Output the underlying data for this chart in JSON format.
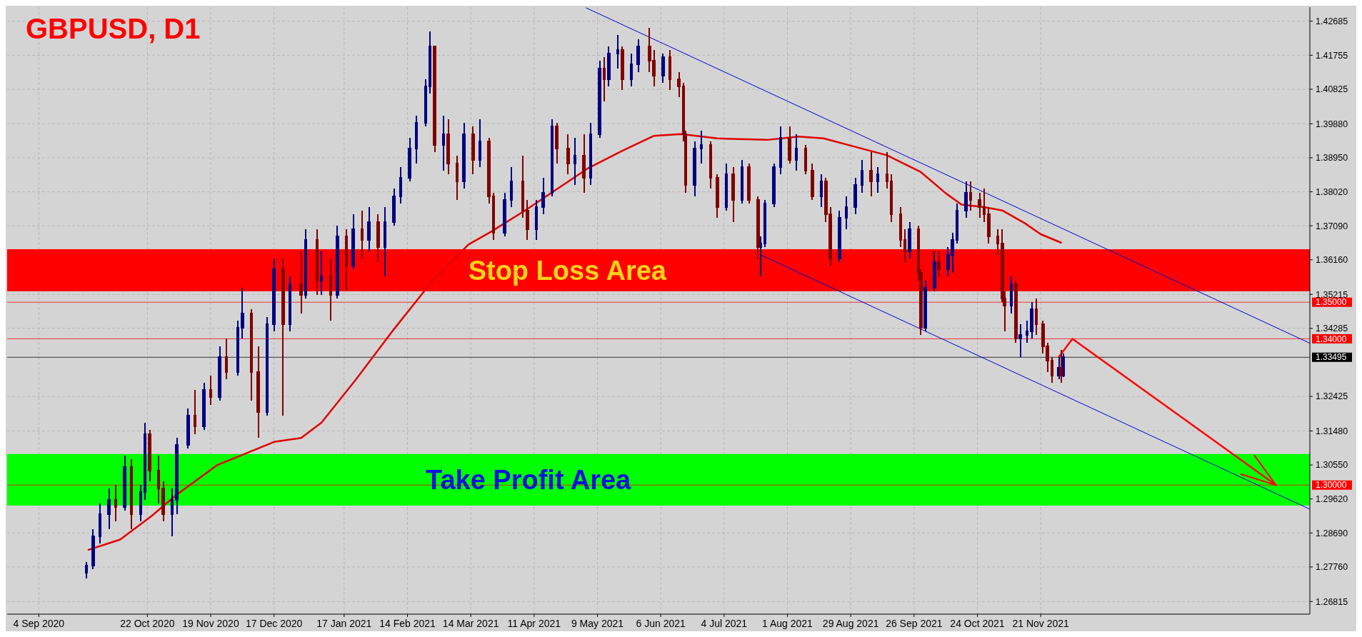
{
  "chart_data": {
    "type": "candlestick",
    "title": "GBPUSD, D1",
    "xlim": [
      "2020-08-21",
      "2022-03-20"
    ],
    "ylim": [
      1.2647,
      1.4307
    ],
    "xticks": [
      {
        "value": "2020-09-04",
        "label": "4 Sep 2020"
      },
      {
        "value": "2020-10-22",
        "label": "22 Oct 2020"
      },
      {
        "value": "2020-11-19",
        "label": "19 Nov 2020"
      },
      {
        "value": "2020-12-17",
        "label": "17 Dec 2020"
      },
      {
        "value": "2021-01-17",
        "label": "17 Jan 2021"
      },
      {
        "value": "2021-02-14",
        "label": "14 Feb 2021"
      },
      {
        "value": "2021-03-14",
        "label": "14 Mar 2021"
      },
      {
        "value": "2021-04-11",
        "label": "11 Apr 2021"
      },
      {
        "value": "2021-05-09",
        "label": "9 May 2021"
      },
      {
        "value": "2021-06-06",
        "label": "6 Jun 2021"
      },
      {
        "value": "2021-07-04",
        "label": "4 Jul 2021"
      },
      {
        "value": "2021-08-01",
        "label": "1 Aug 2021"
      },
      {
        "value": "2021-08-29",
        "label": "29 Aug 2021"
      },
      {
        "value": "2021-09-26",
        "label": "26 Sep 2021"
      },
      {
        "value": "2021-10-24",
        "label": "24 Oct 2021"
      },
      {
        "value": "2021-11-21",
        "label": "21 Nov 2021"
      }
    ],
    "yticks": [
      1.26815,
      {
        "value": 1.2776,
        "label": "1.27760"
      },
      {
        "value": 1.2869,
        "label": "1.28690"
      },
      {
        "value": 1.2962,
        "label": "1.29620"
      },
      {
        "value": 1.3055,
        "label": "1.30550"
      },
      {
        "value": 1.3148,
        "label": "1.31480"
      },
      1.32425,
      1.34285,
      1.35215,
      {
        "value": 1.3616,
        "label": "1.36160"
      },
      {
        "value": 1.3709,
        "label": "1.37090"
      },
      {
        "value": 1.3802,
        "label": "1.38020"
      },
      {
        "value": 1.3895,
        "label": "1.38950"
      },
      {
        "value": 1.3988,
        "label": "1.39880"
      },
      1.40825,
      1.41755,
      1.42685
    ],
    "grid": true,
    "bands": [
      {
        "axis": "y",
        "from": 1.353,
        "to": 1.3645,
        "label": "Stop Loss Area",
        "color": "#ff0000"
      },
      {
        "axis": "y",
        "from": 1.2944,
        "to": 1.3085,
        "label": "Take Profit Area",
        "color": "#00ff00"
      }
    ],
    "ref_lines": [
      {
        "axis": "y",
        "value": 1.35,
        "label": "1.35000",
        "color": "#ff0000"
      },
      {
        "axis": "y",
        "value": 1.34,
        "label": "1.34000",
        "color": "#ff0000"
      },
      {
        "axis": "y",
        "value": 1.3,
        "label": "1.30000",
        "color": "#ff0000"
      },
      {
        "axis": "y",
        "value": 1.33495,
        "label": "1.33495",
        "color": "#000000"
      }
    ],
    "series": [
      {
        "type": "candlestick",
        "color": "#000080",
        "x": [
          "2020-09-25",
          "2020-09-28",
          "2020-10-01",
          "2020-10-05",
          "2020-10-12",
          "2020-10-19",
          "2020-10-21",
          "2020-11-02",
          "2020-11-04",
          "2020-11-09",
          "2020-11-16",
          "2020-11-23",
          "2020-12-01",
          "2020-12-03",
          "2020-12-14",
          "2020-12-17",
          "2020-12-24",
          "2020-12-31",
          "2021-01-07",
          "2021-01-14",
          "2021-01-21",
          "2021-01-28",
          "2021-02-04",
          "2021-02-08",
          "2021-02-11",
          "2021-02-15",
          "2021-02-18",
          "2021-02-22",
          "2021-02-24",
          "2021-03-02",
          "2021-03-11",
          "2021-03-18",
          "2021-03-29",
          "2021-04-01",
          "2021-04-12",
          "2021-04-15",
          "2021-04-19",
          "2021-04-29",
          "2021-05-06",
          "2021-05-10",
          "2021-05-14",
          "2021-05-18",
          "2021-05-24",
          "2021-05-27",
          "2021-06-07",
          "2021-06-21",
          "2021-06-24",
          "2021-07-05",
          "2021-07-12",
          "2021-07-20",
          "2021-07-22",
          "2021-07-26",
          "2021-07-29",
          "2021-08-05",
          "2021-08-16",
          "2021-08-24",
          "2021-08-27",
          "2021-08-31",
          "2021-09-03",
          "2021-09-10",
          "2021-09-24",
          "2021-10-01",
          "2021-10-05",
          "2021-10-11",
          "2021-10-13",
          "2021-10-15",
          "2021-10-19",
          "2021-11-08",
          "2021-11-12",
          "2021-11-15",
          "2021-11-17",
          "2021-11-29",
          "2021-12-01"
        ],
        "ohlc": [
          [
            1.276,
            1.279,
            1.2745,
            1.278
          ],
          [
            1.278,
            1.288,
            1.277,
            1.286
          ],
          [
            1.286,
            1.295,
            1.284,
            1.292
          ],
          [
            1.292,
            1.299,
            1.288,
            1.296
          ],
          [
            1.294,
            1.308,
            1.293,
            1.305
          ],
          [
            1.292,
            1.3,
            1.29,
            1.298
          ],
          [
            1.298,
            1.317,
            1.296,
            1.314
          ],
          [
            1.292,
            1.299,
            1.286,
            1.296
          ],
          [
            1.296,
            1.313,
            1.292,
            1.311
          ],
          [
            1.311,
            1.321,
            1.31,
            1.319
          ],
          [
            1.316,
            1.328,
            1.315,
            1.326
          ],
          [
            1.324,
            1.338,
            1.323,
            1.335
          ],
          [
            1.331,
            1.345,
            1.33,
            1.343
          ],
          [
            1.343,
            1.354,
            1.34,
            1.347
          ],
          [
            1.32,
            1.346,
            1.319,
            1.344
          ],
          [
            1.344,
            1.362,
            1.342,
            1.359
          ],
          [
            1.344,
            1.357,
            1.342,
            1.355
          ],
          [
            1.352,
            1.37,
            1.351,
            1.367
          ],
          [
            1.356,
            1.364,
            1.352,
            1.357
          ],
          [
            1.352,
            1.371,
            1.351,
            1.368
          ],
          [
            1.36,
            1.374,
            1.359,
            1.37
          ],
          [
            1.367,
            1.376,
            1.364,
            1.372
          ],
          [
            1.365,
            1.376,
            1.357,
            1.372
          ],
          [
            1.372,
            1.381,
            1.371,
            1.379
          ],
          [
            1.379,
            1.387,
            1.377,
            1.384
          ],
          [
            1.384,
            1.395,
            1.383,
            1.392
          ],
          [
            1.392,
            1.401,
            1.388,
            1.399
          ],
          [
            1.399,
            1.411,
            1.398,
            1.409
          ],
          [
            1.409,
            1.424,
            1.407,
            1.42
          ],
          [
            1.393,
            1.401,
            1.386,
            1.396
          ],
          [
            1.383,
            1.399,
            1.381,
            1.396
          ],
          [
            1.389,
            1.4,
            1.387,
            1.394
          ],
          [
            1.369,
            1.38,
            1.368,
            1.378
          ],
          [
            1.378,
            1.387,
            1.376,
            1.383
          ],
          [
            1.37,
            1.378,
            1.367,
            1.376
          ],
          [
            1.376,
            1.384,
            1.374,
            1.38
          ],
          [
            1.38,
            1.4,
            1.379,
            1.398
          ],
          [
            1.388,
            1.395,
            1.382,
            1.39
          ],
          [
            1.384,
            1.399,
            1.382,
            1.396
          ],
          [
            1.396,
            1.416,
            1.395,
            1.414
          ],
          [
            1.411,
            1.42,
            1.409,
            1.418
          ],
          [
            1.418,
            1.423,
            1.414,
            1.419
          ],
          [
            1.411,
            1.418,
            1.409,
            1.415
          ],
          [
            1.415,
            1.422,
            1.413,
            1.42
          ],
          [
            1.412,
            1.418,
            1.41,
            1.417
          ],
          [
            1.382,
            1.394,
            1.379,
            1.392
          ],
          [
            1.392,
            1.397,
            1.388,
            1.393
          ],
          [
            1.376,
            1.388,
            1.375,
            1.385
          ],
          [
            1.378,
            1.389,
            1.377,
            1.387
          ],
          [
            1.365,
            1.368,
            1.357,
            1.366
          ],
          [
            1.366,
            1.378,
            1.365,
            1.377
          ],
          [
            1.377,
            1.388,
            1.376,
            1.387
          ],
          [
            1.387,
            1.398,
            1.385,
            1.395
          ],
          [
            1.389,
            1.396,
            1.386,
            1.392
          ],
          [
            1.379,
            1.385,
            1.376,
            1.383
          ],
          [
            1.362,
            1.375,
            1.361,
            1.373
          ],
          [
            1.373,
            1.379,
            1.37,
            1.376
          ],
          [
            1.376,
            1.384,
            1.374,
            1.382
          ],
          [
            1.382,
            1.389,
            1.38,
            1.386
          ],
          [
            1.383,
            1.387,
            1.38,
            1.385
          ],
          [
            1.364,
            1.372,
            1.362,
            1.37
          ],
          [
            1.343,
            1.356,
            1.342,
            1.354
          ],
          [
            1.354,
            1.364,
            1.353,
            1.361
          ],
          [
            1.359,
            1.365,
            1.357,
            1.363
          ],
          [
            1.363,
            1.369,
            1.358,
            1.367
          ],
          [
            1.367,
            1.377,
            1.366,
            1.375
          ],
          [
            1.375,
            1.383,
            1.373,
            1.38
          ],
          [
            1.349,
            1.357,
            1.347,
            1.355
          ],
          [
            1.34,
            1.344,
            1.335,
            1.341
          ],
          [
            1.341,
            1.345,
            1.339,
            1.342
          ],
          [
            1.342,
            1.35,
            1.34,
            1.348
          ],
          [
            1.33,
            1.335,
            1.329,
            1.332
          ],
          [
            1.33,
            1.336,
            1.3295,
            1.33495
          ]
        ]
      },
      {
        "type": "candlestick",
        "color": "#800000",
        "x": [
          "2020-10-08",
          "2020-10-15",
          "2020-10-23",
          "2020-10-27",
          "2020-10-29",
          "2020-11-12",
          "2020-11-19",
          "2020-11-26",
          "2020-12-07",
          "2020-12-10",
          "2020-12-21",
          "2020-12-29",
          "2021-01-05",
          "2021-01-11",
          "2021-01-18",
          "2021-01-25",
          "2021-02-01",
          "2021-02-26",
          "2021-03-04",
          "2021-03-08",
          "2021-03-15",
          "2021-03-22",
          "2021-03-24",
          "2021-04-06",
          "2021-04-08",
          "2021-04-21",
          "2021-04-26",
          "2021-05-03",
          "2021-05-12",
          "2021-05-20",
          "2021-06-01",
          "2021-06-03",
          "2021-06-10",
          "2021-06-14",
          "2021-06-16",
          "2021-06-17",
          "2021-06-28",
          "2021-07-01",
          "2021-07-08",
          "2021-07-15",
          "2021-07-19",
          "2021-08-02",
          "2021-08-09",
          "2021-08-12",
          "2021-08-18",
          "2021-08-20",
          "2021-09-07",
          "2021-09-14",
          "2021-09-16",
          "2021-09-20",
          "2021-09-22",
          "2021-09-28",
          "2021-09-29",
          "2021-10-07",
          "2021-10-21",
          "2021-10-25",
          "2021-10-27",
          "2021-10-29",
          "2021-11-02",
          "2021-11-04",
          "2021-11-05",
          "2021-11-10",
          "2021-11-19",
          "2021-11-22",
          "2021-11-24",
          "2021-11-26",
          "2021-11-30"
        ],
        "ohlc": [
          [
            1.296,
            1.3,
            1.29,
            1.294
          ],
          [
            1.305,
            1.307,
            1.288,
            1.292
          ],
          [
            1.314,
            1.315,
            1.301,
            1.304
          ],
          [
            1.304,
            1.308,
            1.295,
            1.299
          ],
          [
            1.299,
            1.301,
            1.29,
            1.292
          ],
          [
            1.319,
            1.326,
            1.314,
            1.316
          ],
          [
            1.326,
            1.33,
            1.322,
            1.324
          ],
          [
            1.335,
            1.34,
            1.329,
            1.331
          ],
          [
            1.347,
            1.348,
            1.323,
            1.331
          ],
          [
            1.331,
            1.338,
            1.313,
            1.32
          ],
          [
            1.359,
            1.362,
            1.319,
            1.344
          ],
          [
            1.355,
            1.364,
            1.347,
            1.352
          ],
          [
            1.367,
            1.37,
            1.352,
            1.356
          ],
          [
            1.357,
            1.362,
            1.345,
            1.352
          ],
          [
            1.368,
            1.37,
            1.353,
            1.36
          ],
          [
            1.37,
            1.375,
            1.362,
            1.367
          ],
          [
            1.372,
            1.374,
            1.361,
            1.365
          ],
          [
            1.42,
            1.42,
            1.391,
            1.393
          ],
          [
            1.396,
            1.4,
            1.385,
            1.388
          ],
          [
            1.388,
            1.39,
            1.378,
            1.383
          ],
          [
            1.396,
            1.398,
            1.385,
            1.389
          ],
          [
            1.394,
            1.395,
            1.377,
            1.379
          ],
          [
            1.379,
            1.38,
            1.367,
            1.369
          ],
          [
            1.383,
            1.39,
            1.373,
            1.375
          ],
          [
            1.375,
            1.378,
            1.367,
            1.37
          ],
          [
            1.398,
            1.399,
            1.388,
            1.392
          ],
          [
            1.392,
            1.396,
            1.385,
            1.388
          ],
          [
            1.39,
            1.396,
            1.38,
            1.384
          ],
          [
            1.414,
            1.417,
            1.405,
            1.411
          ],
          [
            1.419,
            1.42,
            1.408,
            1.411
          ],
          [
            1.42,
            1.425,
            1.413,
            1.416
          ],
          [
            1.416,
            1.419,
            1.409,
            1.412
          ],
          [
            1.417,
            1.419,
            1.408,
            1.411
          ],
          [
            1.411,
            1.413,
            1.406,
            1.409
          ],
          [
            1.409,
            1.41,
            1.394,
            1.396
          ],
          [
            1.396,
            1.397,
            1.38,
            1.382
          ],
          [
            1.393,
            1.394,
            1.381,
            1.384
          ],
          [
            1.384,
            1.385,
            1.373,
            1.376
          ],
          [
            1.385,
            1.387,
            1.372,
            1.378
          ],
          [
            1.387,
            1.388,
            1.377,
            1.378
          ],
          [
            1.378,
            1.379,
            1.362,
            1.365
          ],
          [
            1.395,
            1.398,
            1.388,
            1.389
          ],
          [
            1.392,
            1.393,
            1.385,
            1.386
          ],
          [
            1.386,
            1.388,
            1.378,
            1.379
          ],
          [
            1.383,
            1.384,
            1.372,
            1.374
          ],
          [
            1.374,
            1.376,
            1.36,
            1.362
          ],
          [
            1.386,
            1.391,
            1.379,
            1.383
          ],
          [
            1.385,
            1.391,
            1.381,
            1.383
          ],
          [
            1.383,
            1.385,
            1.372,
            1.374
          ],
          [
            1.374,
            1.376,
            1.365,
            1.367
          ],
          [
            1.367,
            1.37,
            1.361,
            1.364
          ],
          [
            1.37,
            1.371,
            1.356,
            1.358
          ],
          [
            1.358,
            1.359,
            1.341,
            1.343
          ],
          [
            1.361,
            1.364,
            1.357,
            1.359
          ],
          [
            1.38,
            1.383,
            1.375,
            1.378
          ],
          [
            1.378,
            1.38,
            1.373,
            1.376
          ],
          [
            1.376,
            1.381,
            1.372,
            1.374
          ],
          [
            1.374,
            1.376,
            1.366,
            1.368
          ],
          [
            1.368,
            1.37,
            1.363,
            1.366
          ],
          [
            1.366,
            1.37,
            1.35,
            1.351
          ],
          [
            1.351,
            1.353,
            1.342,
            1.349
          ],
          [
            1.355,
            1.356,
            1.339,
            1.34
          ],
          [
            1.348,
            1.351,
            1.341,
            1.344
          ],
          [
            1.344,
            1.345,
            1.336,
            1.338
          ],
          [
            1.338,
            1.339,
            1.331,
            1.334
          ],
          [
            1.334,
            1.335,
            1.328,
            1.33
          ],
          [
            1.332,
            1.337,
            1.328,
            1.33
          ]
        ]
      },
      {
        "type": "line",
        "color": "#e00000",
        "x": [
          "2020-09-26",
          "2020-10-10",
          "2020-10-24",
          "2020-11-04",
          "2020-11-22",
          "2020-12-17",
          "2020-12-29",
          "2021-01-07",
          "2021-01-22",
          "2021-02-08",
          "2021-02-26",
          "2021-03-13",
          "2021-03-23",
          "2021-04-07",
          "2021-04-21",
          "2021-05-05",
          "2021-05-20",
          "2021-06-03",
          "2021-06-15",
          "2021-07-01",
          "2021-07-23",
          "2021-08-06",
          "2021-08-17",
          "2021-08-31",
          "2021-09-14",
          "2021-09-29",
          "2021-10-10",
          "2021-10-17",
          "2021-10-27",
          "2021-11-04",
          "2021-11-14",
          "2021-11-21",
          "2021-11-30"
        ],
        "values": [
          1.2823,
          1.2851,
          1.2916,
          1.2974,
          1.3055,
          1.3118,
          1.3129,
          1.3171,
          1.3287,
          1.3426,
          1.3566,
          1.3658,
          1.3693,
          1.3751,
          1.3809,
          1.3867,
          1.3914,
          1.3955,
          1.396,
          1.3948,
          1.3944,
          1.3953,
          1.3948,
          1.3925,
          1.3902,
          1.3856,
          1.3798,
          1.3767,
          1.376,
          1.3751,
          1.3716,
          1.3686,
          1.3663
        ]
      },
      {
        "type": "line",
        "color": "#0000cc",
        "x": [
          "2021-05-04",
          "2022-03-20"
        ],
        "values": [
          1.4305,
          1.3388
        ]
      },
      {
        "type": "line",
        "color": "#0000cc",
        "x": [
          "2021-07-20",
          "2022-03-20"
        ],
        "values": [
          1.363,
          1.2934
        ]
      },
      {
        "type": "line",
        "color": "#ff0000",
        "x": [
          "2021-11-29",
          "2021-12-05",
          "2022-03-05"
        ],
        "values": [
          1.335,
          1.34,
          1.3
        ]
      }
    ]
  }
}
